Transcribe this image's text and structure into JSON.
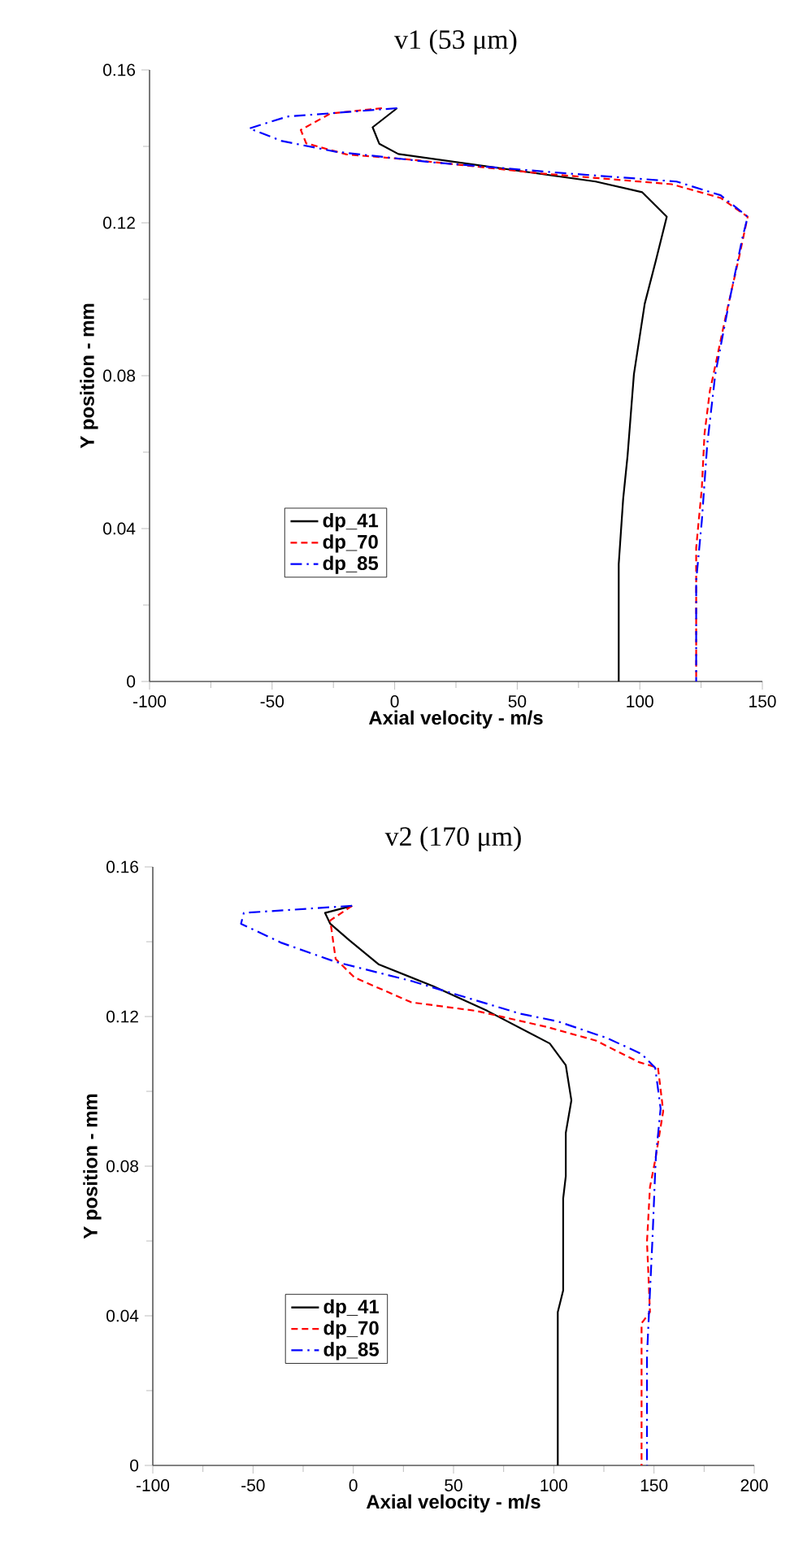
{
  "chart_data": [
    {
      "type": "line",
      "title": "v1 (53 μm)",
      "xlabel": "Axial velocity - m/s",
      "ylabel": "Y position - mm",
      "xlim": [
        -100,
        150
      ],
      "xticks": [
        -100,
        -50,
        0,
        50,
        100,
        150
      ],
      "ylim": [
        0,
        0.16
      ],
      "yticks": [
        0,
        0.04,
        0.08,
        0.12,
        0.16
      ],
      "grid": false,
      "legend": "left",
      "marker": "none",
      "series": [
        {
          "name": "dp_41",
          "color": "#000000",
          "line_style": "solid",
          "x": [
            1.0,
            -9,
            -6.3,
            1.5,
            82,
            101,
            111,
            106.5,
            102,
            97.6,
            95,
            93.2,
            91.4,
            91.4
          ],
          "values": [
            0.15,
            0.145,
            0.1407,
            0.138,
            0.1308,
            0.128,
            0.1216,
            0.11,
            0.0988,
            0.0804,
            0.059,
            0.0477,
            0.0307,
            0
          ]
        },
        {
          "name": "dp_70",
          "color": "#ff0000",
          "line_style": "dashed",
          "x": [
            -5.2,
            -26.2,
            -38.3,
            -36.1,
            -19.6,
            7,
            60,
            113,
            133,
            144,
            140.7,
            135.2,
            129.6,
            128.6,
            126.4,
            125.3,
            123,
            123
          ],
          "values": [
            0.15,
            0.1486,
            0.1443,
            0.1408,
            0.1379,
            0.1365,
            0.1329,
            0.1301,
            0.1265,
            0.1216,
            0.1116,
            0.096,
            0.079,
            0.0761,
            0.0648,
            0.0506,
            0.035,
            0
          ]
        },
        {
          "name": "dp_85",
          "color": "#0000ff",
          "line_style": "dashdot",
          "x": [
            1.0,
            -43.8,
            -59.3,
            -46,
            -24,
            15.8,
            71,
            115,
            133,
            144,
            141.8,
            136.3,
            130.8,
            127.5,
            125.3,
            123,
            123
          ],
          "values": [
            0.15,
            0.1478,
            0.1447,
            0.1414,
            0.1386,
            0.1358,
            0.1329,
            0.1308,
            0.1272,
            0.1216,
            0.1159,
            0.0988,
            0.0804,
            0.062,
            0.042,
            0.0264,
            0
          ]
        }
      ]
    },
    {
      "type": "line",
      "title": "v2 (170 μm)",
      "xlabel": "Axial velocity - m/s",
      "ylabel": "Y position - mm",
      "xlim": [
        -100,
        200
      ],
      "xticks": [
        -100,
        -50,
        0,
        50,
        100,
        150,
        200
      ],
      "ylim": [
        0,
        0.16
      ],
      "yticks": [
        0,
        0.04,
        0.08,
        0.12,
        0.16
      ],
      "grid": false,
      "legend": "left",
      "marker": "none",
      "series": [
        {
          "name": "dp_41",
          "color": "#000000",
          "line_style": "solid",
          "x": [
            -0.6,
            -14.1,
            -11.5,
            -2,
            12.8,
            39.9,
            66.9,
            98,
            106,
            108.8,
            106,
            106,
            104.7,
            104.7,
            102,
            102
          ],
          "values": [
            0.1496,
            0.1477,
            0.1448,
            0.1404,
            0.1339,
            0.1281,
            0.1215,
            0.1128,
            0.107,
            0.0976,
            0.0889,
            0.0773,
            0.0714,
            0.0468,
            0.041,
            0
          ]
        },
        {
          "name": "dp_70",
          "color": "#ff0000",
          "line_style": "dashed",
          "x": [
            -0.6,
            -11.5,
            -8.8,
            0.7,
            29,
            61.4,
            96.6,
            120.9,
            142.5,
            152,
            154.6,
            150.6,
            148,
            146.5,
            148,
            143.8,
            143.8
          ],
          "values": [
            0.1496,
            0.1457,
            0.1354,
            0.1304,
            0.1238,
            0.1215,
            0.1172,
            0.1136,
            0.1078,
            0.1063,
            0.0947,
            0.0816,
            0.0744,
            0.0598,
            0.041,
            0.038,
            0
          ]
        },
        {
          "name": "dp_85",
          "color": "#0000ff",
          "line_style": "dashdot",
          "x": [
            -0.6,
            -54.6,
            -56,
            -35.8,
            -8.7,
            29,
            83,
            102,
            126.3,
            143.8,
            150.6,
            153.3,
            151,
            150.6,
            149.3,
            146.5,
            146.5
          ],
          "values": [
            0.1496,
            0.1477,
            0.1448,
            0.1397,
            0.1346,
            0.1295,
            0.1208,
            0.1187,
            0.1143,
            0.11,
            0.1063,
            0.0954,
            0.083,
            0.0787,
            0.0613,
            0.0294,
            0
          ]
        }
      ]
    }
  ]
}
